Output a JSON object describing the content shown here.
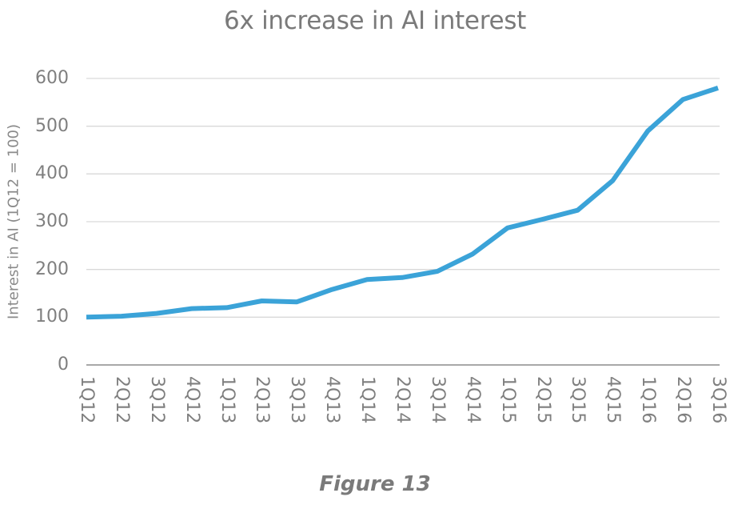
{
  "figure": {
    "title": "6x increase in AI interest",
    "caption": "Figure 13"
  },
  "colors": {
    "line": "#3BA3D8",
    "grid": "#d9d9d9",
    "axis": "#8c8c8c",
    "text": "#7f7f7f"
  },
  "chart_data": {
    "type": "line",
    "title": "6x increase in AI interest",
    "xlabel": "",
    "ylabel": "Interest in AI (1Q12 = 100)",
    "ylim": [
      0,
      600
    ],
    "yticks": [
      0,
      100,
      200,
      300,
      400,
      500,
      600
    ],
    "grid": true,
    "legend": null,
    "categories": [
      "1Q12",
      "2Q12",
      "3Q12",
      "4Q12",
      "1Q13",
      "2Q13",
      "3Q13",
      "4Q13",
      "1Q14",
      "2Q14",
      "3Q14",
      "4Q14",
      "1Q15",
      "2Q15",
      "3Q15",
      "4Q15",
      "1Q16",
      "2Q16",
      "3Q16"
    ],
    "series": [
      {
        "name": "Interest in AI",
        "values": [
          100,
          102,
          108,
          118,
          120,
          134,
          132,
          158,
          179,
          183,
          196,
          232,
          287,
          305,
          324,
          386,
          490,
          556,
          580
        ]
      }
    ]
  }
}
